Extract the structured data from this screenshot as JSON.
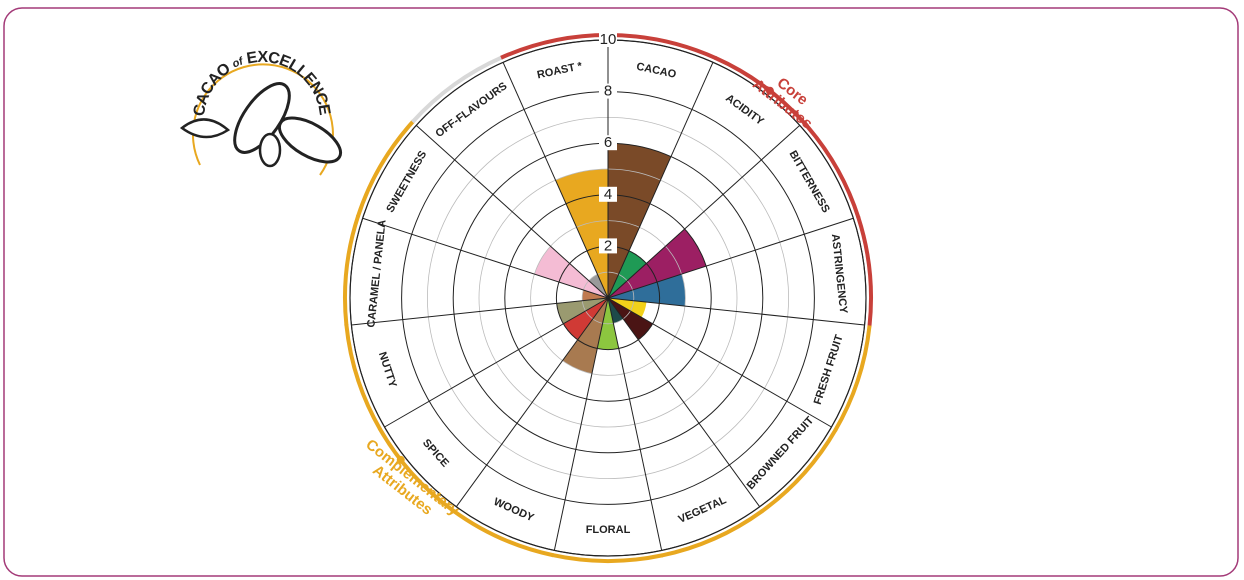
{
  "logo": {
    "word1": "CACAO",
    "word2": "of",
    "word3": "EXCELLENCE"
  },
  "chart_data": {
    "type": "polar",
    "categories": [
      "CACAO",
      "ACIDITY",
      "BITTERNESS",
      "ASTRINGENCY",
      "FRESH FRUIT",
      "BROWNED FRUIT",
      "VEGETAL",
      "FLORAL",
      "WOODY",
      "SPICE",
      "NUTTY",
      "CARAMEL / PANELA",
      "SWEETNESS",
      "OFF-FLAVOURS",
      "ROAST *"
    ],
    "values": [
      6,
      2,
      4,
      3,
      1.5,
      2,
      1,
      2,
      3,
      2,
      2,
      1,
      3,
      1,
      5
    ],
    "colors": [
      "#7a4a28",
      "#1f9a55",
      "#9c1f63",
      "#2f6e9a",
      "#f2d11a",
      "#4a1414",
      "#1e4a4a",
      "#8cc63f",
      "#a87a50",
      "#d03a35",
      "#9a9a70",
      "#c07a50",
      "#f4bcd4",
      "#9a9a9a",
      "#e8a820"
    ],
    "ring_colors": [
      "#c8403a",
      "#c8403a",
      "#c8403a",
      "#c8403a",
      "#e8a820",
      "#e8a820",
      "#e8a820",
      "#e8a820",
      "#e8a820",
      "#e8a820",
      "#e8a820",
      "#e8a820",
      "#e8a820",
      "#d8d8d8",
      "#c8403a"
    ],
    "rlim": [
      0,
      10
    ],
    "rticks": [
      2,
      4,
      6,
      8,
      10
    ],
    "rminor": [
      1,
      3,
      5,
      7
    ],
    "annotations": [
      {
        "lines": [
          "Core",
          "Attributes"
        ],
        "color": "#c8403a"
      },
      {
        "lines": [
          "Complementary",
          "Attributes"
        ],
        "color": "#e8a820"
      }
    ]
  }
}
